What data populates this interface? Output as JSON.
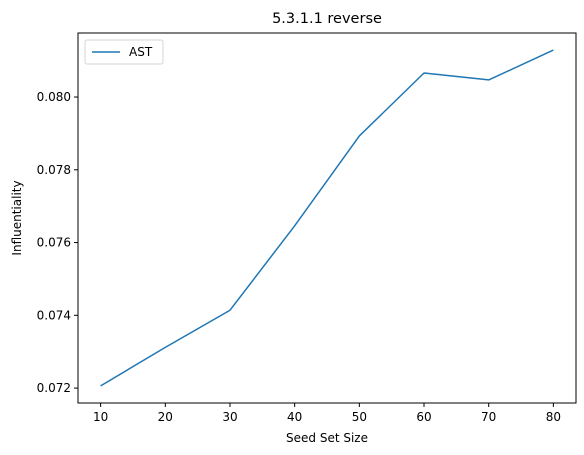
{
  "chart_data": {
    "type": "line",
    "title": "5.3.1.1 reverse",
    "xlabel": "Seed Set Size",
    "ylabel": "Influentiality",
    "x": [
      10,
      20,
      30,
      40,
      50,
      60,
      70,
      80
    ],
    "series": [
      {
        "name": "AST",
        "color": "#1f77b4",
        "values": [
          0.07206,
          0.07312,
          0.07414,
          0.07646,
          0.07893,
          0.08066,
          0.08047,
          0.08129
        ]
      }
    ],
    "xticks": [
      10,
      20,
      30,
      40,
      50,
      60,
      70,
      80
    ],
    "xtick_labels": [
      "10",
      "20",
      "30",
      "40",
      "50",
      "60",
      "70",
      "80"
    ],
    "yticks": [
      0.072,
      0.074,
      0.076,
      0.078,
      0.08
    ],
    "ytick_labels": [
      "0.072",
      "0.074",
      "0.076",
      "0.078",
      "0.080"
    ],
    "xlim": [
      6.5,
      83.5
    ],
    "ylim": [
      0.07159,
      0.08176
    ],
    "grid": false,
    "legend_position": "top-left"
  }
}
